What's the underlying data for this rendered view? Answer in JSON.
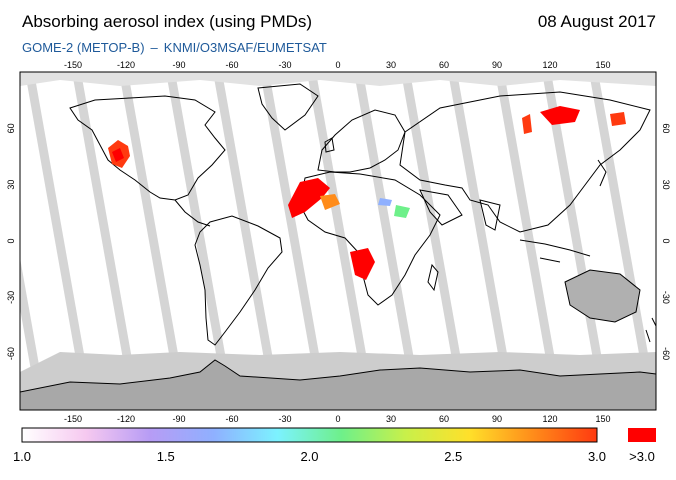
{
  "header": {
    "title": "Absorbing aerosol index (using PMDs)",
    "date": "08 August 2017",
    "instrument": "GOME-2 (METOP-B)",
    "separator": "–",
    "credit": "KNMI/O3MSAF/EUMETSAT"
  },
  "map": {
    "lon_ticks": [
      "-150",
      "-120",
      "-90",
      "-60",
      "-30",
      "0",
      "30",
      "60",
      "90",
      "120",
      "150"
    ],
    "lat_ticks": [
      "60",
      "30",
      "0",
      "-30",
      "-60"
    ],
    "colors": {
      "ocean": "#ffffff",
      "swath_gap": "#d0d0d0",
      "polar_fill": "#bdbdbd",
      "antarctica": "#a8a8a8",
      "coast": "#000000",
      "high_aerosol": "#ff0000",
      "mid_aerosol": "#ff7a00"
    }
  },
  "colorbar": {
    "labels": [
      "1.0",
      "1.5",
      "2.0",
      "2.5",
      "3.0"
    ],
    "over_label": ">3.0",
    "gradient": [
      "#ffffff",
      "#f6c9f0",
      "#b79cf5",
      "#8fb0ff",
      "#7cf2ff",
      "#6ef08a",
      "#c8f04a",
      "#ffe02a",
      "#ff8c1a",
      "#ff3a10"
    ],
    "over_color": "#ff0000"
  }
}
